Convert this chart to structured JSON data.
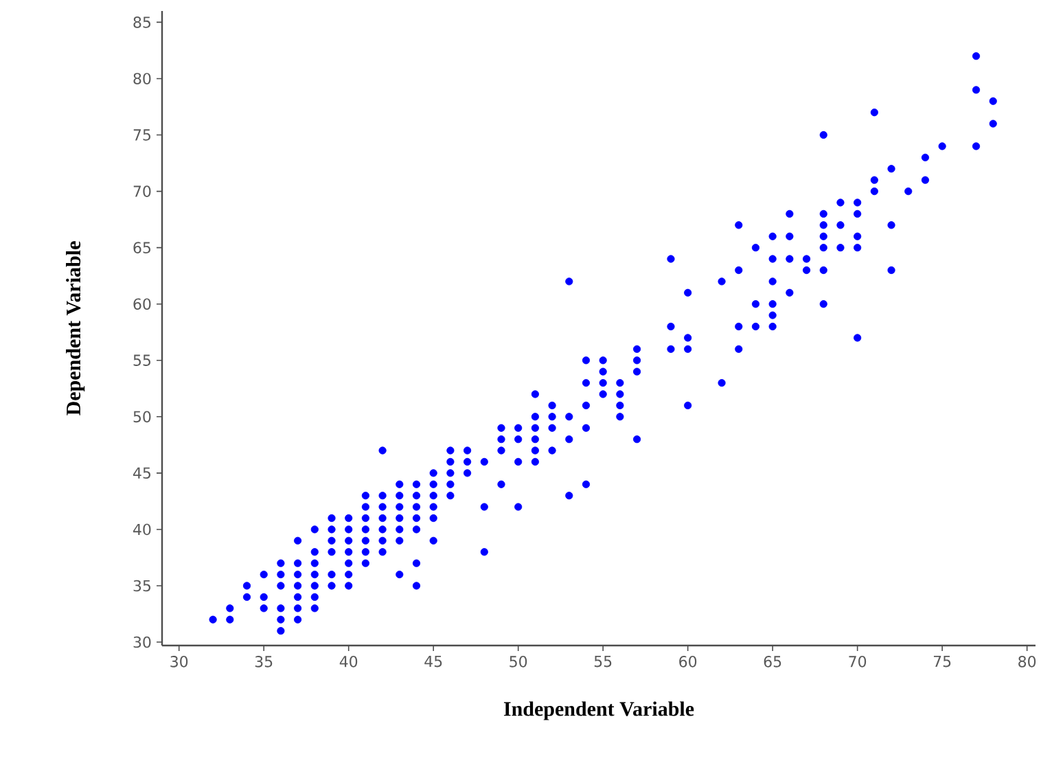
{
  "chart_data": {
    "type": "scatter",
    "xlabel": "Independent Variable",
    "ylabel": "Dependent Variable",
    "xlim": [
      29,
      80.5
    ],
    "ylim": [
      29.7,
      86
    ],
    "xticks": [
      30,
      35,
      40,
      45,
      50,
      55,
      60,
      65,
      70,
      75,
      80
    ],
    "yticks": [
      30,
      35,
      40,
      45,
      50,
      55,
      60,
      65,
      70,
      75,
      80,
      85
    ],
    "grid": false,
    "legend": false,
    "marker": "circle",
    "series": [
      {
        "color": "#0000ff",
        "x": [
          32,
          33,
          33,
          34,
          34,
          35,
          35,
          35,
          36,
          36,
          36,
          36,
          36,
          36,
          37,
          37,
          37,
          37,
          37,
          37,
          37,
          38,
          38,
          38,
          38,
          38,
          38,
          38,
          39,
          39,
          39,
          39,
          39,
          39,
          40,
          40,
          40,
          40,
          40,
          40,
          40,
          41,
          41,
          41,
          41,
          41,
          41,
          41,
          42,
          42,
          42,
          42,
          42,
          42,
          42,
          43,
          43,
          43,
          43,
          43,
          43,
          43,
          44,
          44,
          44,
          44,
          44,
          44,
          44,
          45,
          45,
          45,
          45,
          45,
          45,
          46,
          46,
          46,
          46,
          46,
          47,
          47,
          47,
          48,
          48,
          48,
          49,
          49,
          49,
          49,
          50,
          50,
          50,
          50,
          51,
          51,
          51,
          51,
          51,
          51,
          52,
          52,
          52,
          52,
          53,
          53,
          53,
          53,
          54,
          54,
          54,
          54,
          54,
          55,
          55,
          55,
          55,
          56,
          56,
          56,
          56,
          57,
          57,
          57,
          57,
          59,
          59,
          59,
          60,
          60,
          60,
          60,
          62,
          62,
          63,
          63,
          63,
          63,
          64,
          64,
          64,
          65,
          65,
          65,
          65,
          65,
          65,
          66,
          66,
          66,
          66,
          67,
          67,
          68,
          68,
          68,
          68,
          68,
          68,
          68,
          69,
          69,
          69,
          70,
          70,
          70,
          70,
          70,
          71,
          71,
          71,
          72,
          72,
          72,
          73,
          74,
          74,
          75,
          77,
          77,
          77,
          78,
          78
        ],
        "values": [
          32,
          33,
          32,
          35,
          34,
          36,
          34,
          33,
          37,
          36,
          35,
          33,
          32,
          31,
          39,
          37,
          36,
          35,
          34,
          33,
          32,
          40,
          38,
          37,
          36,
          35,
          34,
          33,
          41,
          40,
          39,
          38,
          36,
          35,
          41,
          40,
          39,
          38,
          37,
          36,
          35,
          43,
          42,
          41,
          40,
          39,
          38,
          37,
          47,
          43,
          42,
          41,
          40,
          39,
          38,
          44,
          43,
          42,
          41,
          40,
          39,
          36,
          44,
          43,
          42,
          41,
          40,
          37,
          35,
          45,
          44,
          43,
          42,
          41,
          39,
          47,
          46,
          45,
          44,
          43,
          47,
          46,
          45,
          46,
          42,
          38,
          49,
          48,
          47,
          44,
          49,
          48,
          46,
          42,
          52,
          50,
          49,
          48,
          47,
          46,
          51,
          50,
          49,
          47,
          62,
          50,
          48,
          43,
          55,
          53,
          51,
          49,
          44,
          55,
          54,
          53,
          52,
          53,
          52,
          51,
          50,
          56,
          55,
          54,
          48,
          64,
          58,
          56,
          61,
          57,
          56,
          51,
          62,
          53,
          67,
          63,
          58,
          56,
          65,
          60,
          58,
          66,
          64,
          62,
          60,
          59,
          58,
          68,
          66,
          64,
          61,
          64,
          63,
          75,
          68,
          67,
          66,
          65,
          63,
          60,
          69,
          67,
          65,
          69,
          68,
          66,
          65,
          57,
          77,
          71,
          70,
          72,
          67,
          63,
          70,
          73,
          71,
          74,
          82,
          79,
          74,
          78,
          76
        ]
      }
    ]
  }
}
